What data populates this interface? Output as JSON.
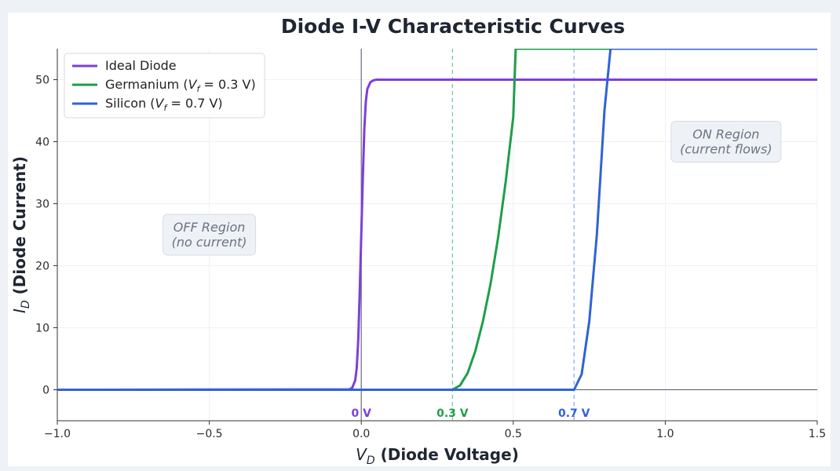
{
  "chart_data": {
    "type": "line",
    "title": "Diode I-V Characteristic Curves",
    "xlabel_var": "V",
    "xlabel_sub": "D",
    "xlabel_rest": "(Diode Voltage)",
    "ylabel_var": "I",
    "ylabel_sub": "D",
    "ylabel_rest": "(Diode Current)",
    "xlim": [
      -1.0,
      1.5
    ],
    "ylim": [
      -5,
      55
    ],
    "xticks": [
      -1.0,
      -0.5,
      0.0,
      0.5,
      1.0,
      1.5
    ],
    "xtick_labels": [
      "−1.0",
      "−0.5",
      "0.0",
      "0.5",
      "1.0",
      "1.5"
    ],
    "yticks": [
      0,
      10,
      20,
      30,
      40,
      50
    ],
    "ytick_labels": [
      "0",
      "10",
      "20",
      "30",
      "40",
      "50"
    ],
    "grid": true,
    "legend_position": "top-left",
    "series": [
      {
        "name": "Ideal Diode",
        "color": "#7d3fd9",
        "x": [
          -1.0,
          -0.04,
          -0.03,
          -0.02,
          -0.015,
          -0.01,
          -0.005,
          0.0,
          0.005,
          0.01,
          0.015,
          0.02,
          0.03,
          0.04,
          0.05,
          1.5
        ],
        "y": [
          0,
          0.05,
          0.3,
          1.5,
          3.5,
          8,
          16,
          25,
          34,
          42,
          46.5,
          48.5,
          49.6,
          49.9,
          50,
          50
        ]
      },
      {
        "name": "Germanium (V",
        "name_sub": "f",
        "name_tail": " = 0.3 V)",
        "color": "#1f9e4a",
        "x": [
          -1.0,
          0.3,
          0.325,
          0.35,
          0.375,
          0.4,
          0.425,
          0.45,
          0.475,
          0.5,
          0.508,
          1.5
        ],
        "y": [
          0,
          0,
          0.7,
          2.7,
          6.2,
          11,
          17,
          24.5,
          33.5,
          44,
          55,
          55
        ]
      },
      {
        "name": "Silicon (V",
        "name_sub": "f",
        "name_tail": " = 0.7 V)",
        "color": "#2f63d6",
        "x": [
          -1.0,
          0.7,
          0.725,
          0.75,
          0.775,
          0.8,
          0.82,
          1.5
        ],
        "y": [
          0,
          0,
          2.5,
          11,
          25,
          45,
          55,
          55
        ]
      }
    ],
    "vlines": [
      {
        "x": 0.0,
        "label": "0 V",
        "color": "#7d3fd9",
        "line_color": "#6b6b80",
        "dashed": false
      },
      {
        "x": 0.3,
        "label": "0.3 V",
        "color": "#1f9e4a",
        "line_color": "#6fc596",
        "dashed": true
      },
      {
        "x": 0.7,
        "label": "0.7 V",
        "color": "#2f63d6",
        "line_color": "#8aa7ea",
        "dashed": true
      }
    ],
    "annotations": [
      {
        "lines": [
          "OFF Region",
          "(no current)"
        ],
        "x": -0.5,
        "y": 25
      },
      {
        "lines": [
          "ON Region",
          "(current flows)"
        ],
        "x": 1.2,
        "y": 40
      }
    ]
  }
}
